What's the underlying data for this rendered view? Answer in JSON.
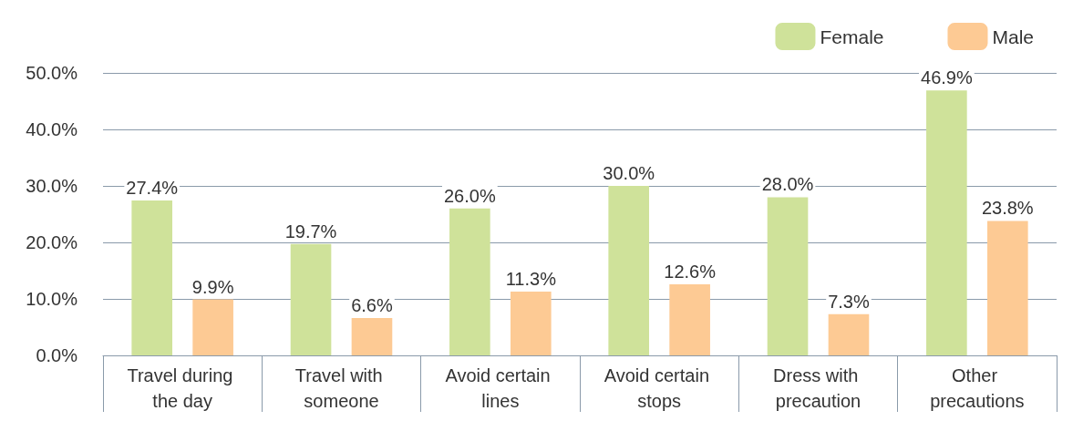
{
  "chart_data": {
    "type": "bar",
    "categories": [
      "Travel during the day",
      "Travel with someone",
      "Avoid certain lines",
      "Avoid certain stops",
      "Dress with precaution",
      "Other precautions"
    ],
    "series": [
      {
        "name": "Female",
        "color": "#cfe29a",
        "values": [
          27.4,
          19.7,
          26.0,
          30.0,
          28.0,
          46.9
        ],
        "value_labels": [
          "27.4%",
          "19.7%",
          "26.0%",
          "30.0%",
          "28.0%",
          "46.9%"
        ]
      },
      {
        "name": "Male",
        "color": "#fdca94",
        "values": [
          9.9,
          6.6,
          11.3,
          12.6,
          7.3,
          23.8
        ],
        "value_labels": [
          "9.9%",
          "6.6%",
          "11.3%",
          "12.6%",
          "7.3%",
          "23.8%"
        ]
      }
    ],
    "ylim": [
      0,
      50
    ],
    "yticks": [
      {
        "value": 0,
        "label": "0.0%"
      },
      {
        "value": 10,
        "label": "10.0%"
      },
      {
        "value": 20,
        "label": "20.0%"
      },
      {
        "value": 30,
        "label": "30.0%"
      },
      {
        "value": 40,
        "label": "40.0%"
      },
      {
        "value": 50,
        "label": "50.0%"
      }
    ],
    "grid": "y",
    "legend": "top right"
  }
}
